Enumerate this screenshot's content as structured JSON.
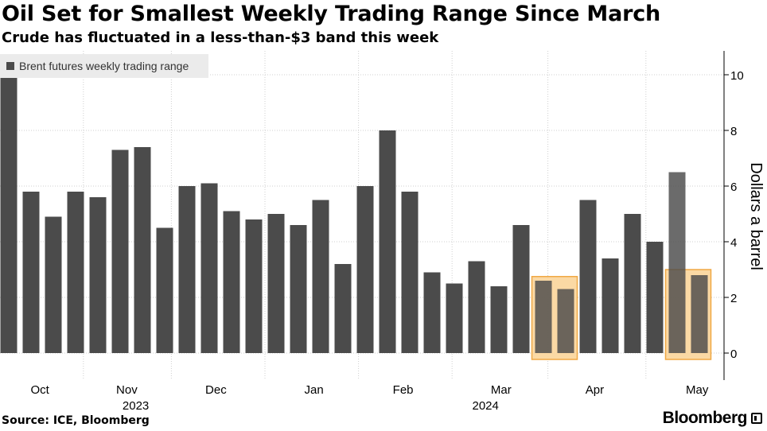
{
  "title": "Oil Set for Smallest Weekly Trading Range Since March",
  "subtitle": "Crude has fluctuated in a less-than-$3 band this week",
  "legend": {
    "label": "Brent futures weekly trading range"
  },
  "source": "Source: ICE, Bloomberg",
  "brand": "Bloomberg",
  "colors": {
    "bar": "#4b4b4b",
    "highlight_fill": "#fbd7a0",
    "highlight_stroke": "#f0a43a",
    "grid": "#cfcfcf"
  },
  "chart_data": {
    "type": "bar",
    "ylabel": "Dollars a barrel",
    "ylim": [
      -1,
      11
    ],
    "yticks": [
      0,
      2,
      4,
      6,
      8,
      10
    ],
    "grid": true,
    "legend_position": "top-left",
    "y_axis_position": "right",
    "values": [
      9.9,
      5.8,
      4.9,
      5.8,
      5.6,
      7.3,
      7.4,
      4.5,
      6.0,
      6.1,
      5.1,
      4.8,
      5.0,
      4.6,
      5.5,
      3.2,
      6.0,
      8.0,
      5.8,
      2.9,
      2.5,
      3.3,
      2.4,
      4.6,
      2.6,
      2.3,
      5.5,
      3.4,
      5.0,
      4.0,
      6.5,
      2.8
    ],
    "month_labels": [
      {
        "label": "Oct",
        "bar": 1.4
      },
      {
        "label": "Nov",
        "bar": 5.3
      },
      {
        "label": "Dec",
        "bar": 9.3
      },
      {
        "label": "Jan",
        "bar": 13.7
      },
      {
        "label": "Feb",
        "bar": 17.7
      },
      {
        "label": "Mar",
        "bar": 22.1
      },
      {
        "label": "Apr",
        "bar": 26.3
      },
      {
        "label": "May",
        "bar": 30.9
      }
    ],
    "year_labels": [
      {
        "label": "2023",
        "bar": 5.7
      },
      {
        "label": "2024",
        "bar": 21.4
      }
    ],
    "highlights": [
      {
        "from_bar": 24,
        "to_bar": 25,
        "ymax": 2.75
      },
      {
        "from_bar": 30,
        "to_bar": 31,
        "ymax": 3.0
      }
    ]
  }
}
